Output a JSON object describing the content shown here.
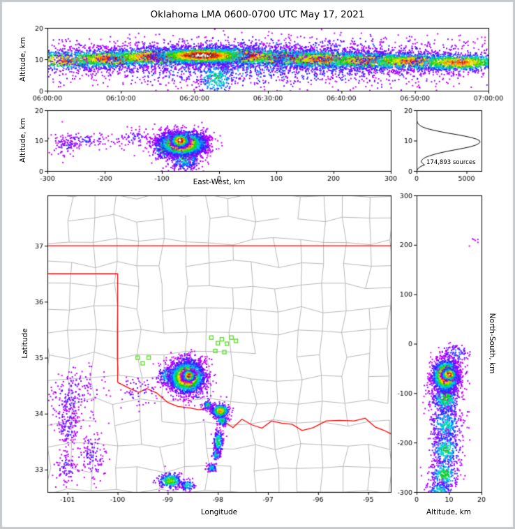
{
  "title": "Oklahoma LMA 0600-0700 UTC May 17, 2021",
  "frame_color": "#c6c9cc",
  "colors": {
    "background": "#ffffff",
    "axis": "#000000",
    "county_line": "#b8b8b8",
    "state_line": "#ff0000",
    "station_marker": "#55dd22",
    "histogram_curve": "#000000",
    "colormap": [
      [
        0.0,
        "#d800ff"
      ],
      [
        0.1,
        "#7a00ff"
      ],
      [
        0.18,
        "#2222ff"
      ],
      [
        0.28,
        "#00a8ff"
      ],
      [
        0.38,
        "#00e0d0"
      ],
      [
        0.48,
        "#00c800"
      ],
      [
        0.58,
        "#90e000"
      ],
      [
        0.66,
        "#ffe800"
      ],
      [
        0.74,
        "#ff9800"
      ],
      [
        0.82,
        "#ff2000"
      ],
      [
        0.89,
        "#a00000"
      ],
      [
        0.94,
        "#606060"
      ],
      [
        1.0,
        "#ffffff"
      ]
    ]
  },
  "chart_data": [
    {
      "id": "time_height",
      "type": "scatter",
      "xlabel": "",
      "ylabel": "Altitude, km",
      "xlim": [
        0,
        60
      ],
      "ylim": [
        0,
        20
      ],
      "xticks": [
        [
          0,
          "06:00:00"
        ],
        [
          10,
          "06:10:00"
        ],
        [
          20,
          "06:20:00"
        ],
        [
          30,
          "06:30:00"
        ],
        [
          40,
          "06:40:00"
        ],
        [
          50,
          "06:50:00"
        ],
        [
          60,
          "07:00:00"
        ]
      ],
      "yticks": [
        [
          0,
          "0"
        ],
        [
          10,
          "10"
        ],
        [
          20,
          "20"
        ]
      ],
      "clusters": [
        [
          30,
          9.5,
          19,
          3.2,
          2200,
          0.3
        ],
        [
          30,
          5.5,
          19,
          2.6,
          550,
          0.2
        ],
        [
          30,
          14.5,
          19,
          1.8,
          380,
          0.18
        ],
        [
          23,
          4.0,
          1.5,
          3.0,
          260,
          0.45
        ],
        [
          3,
          9.8,
          4.0,
          1.7,
          750,
          0.8
        ],
        [
          9,
          10.2,
          4.0,
          1.6,
          900,
          0.85
        ],
        [
          15,
          10.8,
          4.0,
          1.6,
          1000,
          0.9
        ],
        [
          32,
          10.4,
          4.0,
          1.6,
          1000,
          0.9
        ],
        [
          38,
          10.0,
          4.0,
          1.6,
          950,
          0.85
        ],
        [
          44,
          9.6,
          4.0,
          1.5,
          900,
          0.82
        ],
        [
          50,
          9.3,
          4.0,
          1.5,
          850,
          0.8
        ],
        [
          56,
          9.0,
          3.5,
          1.5,
          820,
          0.8
        ],
        [
          26,
          11.0,
          3.5,
          1.5,
          1100,
          0.95
        ],
        [
          21,
          11.2,
          3.5,
          1.4,
          1400,
          1.0
        ]
      ]
    },
    {
      "id": "east_west",
      "type": "scatter",
      "xlabel": "East-West, km",
      "ylabel": "Altitude, km",
      "xlim": [
        -300,
        300
      ],
      "ylim": [
        0,
        20
      ],
      "xticks": [
        [
          -300,
          "-300"
        ],
        [
          -200,
          "-200"
        ],
        [
          -100,
          "-100"
        ],
        [
          0,
          "0"
        ],
        [
          100,
          "100"
        ],
        [
          200,
          "200"
        ],
        [
          300,
          "300"
        ]
      ],
      "yticks": [
        [
          0,
          "0"
        ],
        [
          10,
          "10"
        ],
        [
          20,
          "20"
        ]
      ],
      "clusters": [
        [
          -150,
          11.0,
          22,
          1.8,
          90,
          0.13
        ],
        [
          -240,
          10.0,
          26,
          1.4,
          110,
          0.14
        ],
        [
          -270,
          8.5,
          12,
          2.2,
          60,
          0.13
        ],
        [
          -60,
          4.5,
          14,
          2.2,
          520,
          0.45
        ],
        [
          -95,
          8.0,
          10,
          2.0,
          350,
          0.6
        ],
        [
          -35,
          9.0,
          10,
          2.0,
          300,
          0.5
        ],
        [
          -65,
          9.0,
          20,
          2.0,
          2400,
          1.0
        ],
        [
          -68,
          10.0,
          8,
          1.1,
          700,
          1.0
        ]
      ]
    },
    {
      "id": "alt_histogram",
      "type": "line",
      "xlabel": "",
      "ylabel": "",
      "annotation": "174,893 sources",
      "xlim": [
        0,
        6500
      ],
      "ylim": [
        0,
        20
      ],
      "xticks": [
        [
          0,
          "0"
        ],
        [
          5000,
          "5000"
        ]
      ],
      "yticks": [
        [
          0,
          "0"
        ],
        [
          10,
          "10"
        ],
        [
          20,
          "20"
        ]
      ],
      "profile_alt_count": [
        [
          0,
          30
        ],
        [
          0.5,
          80
        ],
        [
          1,
          200
        ],
        [
          1.5,
          420
        ],
        [
          2,
          800
        ],
        [
          2.5,
          600
        ],
        [
          3,
          450
        ],
        [
          3.5,
          500
        ],
        [
          4,
          650
        ],
        [
          4.5,
          900
        ],
        [
          5,
          1300
        ],
        [
          5.5,
          1800
        ],
        [
          6,
          2400
        ],
        [
          6.5,
          3100
        ],
        [
          7,
          3900
        ],
        [
          7.5,
          4700
        ],
        [
          8,
          5400
        ],
        [
          8.5,
          5900
        ],
        [
          9,
          6200
        ],
        [
          9.5,
          6350
        ],
        [
          10,
          6300
        ],
        [
          10.5,
          6000
        ],
        [
          11,
          5500
        ],
        [
          11.5,
          4800
        ],
        [
          12,
          4000
        ],
        [
          12.5,
          3100
        ],
        [
          13,
          2300
        ],
        [
          13.5,
          1600
        ],
        [
          14,
          1000
        ],
        [
          14.5,
          600
        ],
        [
          15,
          330
        ],
        [
          15.5,
          170
        ],
        [
          16,
          80
        ],
        [
          16.5,
          40
        ],
        [
          17,
          18
        ],
        [
          18,
          6
        ],
        [
          19,
          2
        ],
        [
          20,
          0
        ]
      ]
    },
    {
      "id": "plan_view",
      "type": "scatter-map",
      "xlabel": "Longitude",
      "ylabel": "Latitude",
      "xlim": [
        -101.4,
        -94.55
      ],
      "ylim": [
        32.6,
        37.9
      ],
      "xticks": [
        [
          -101,
          "-101"
        ],
        [
          -100,
          "-100"
        ],
        [
          -99,
          "-99"
        ],
        [
          -98,
          "-98"
        ],
        [
          -97,
          "-97"
        ],
        [
          -96,
          "-96"
        ],
        [
          -95,
          "-95"
        ]
      ],
      "yticks": [
        [
          33,
          "33"
        ],
        [
          34,
          "34"
        ],
        [
          35,
          "35"
        ],
        [
          36,
          "36"
        ],
        [
          37,
          "37"
        ]
      ],
      "county_grid": {
        "lon0": -101.4,
        "lon1": -94.55,
        "lat0": 32.6,
        "lat1": 37.9,
        "nx": 15,
        "ny": 13,
        "jitter": 0.07,
        "skip": 0.12,
        "seed": 7
      },
      "state_border": [
        [
          [
            -101.4,
            37
          ],
          [
            -94.55,
            37
          ]
        ],
        [
          [
            -101.4,
            36.5
          ],
          [
            -100.0,
            36.5
          ],
          [
            -100.0,
            34.56
          ]
        ],
        [
          [
            -100.0,
            34.56
          ],
          [
            -99.78,
            34.46
          ],
          [
            -99.58,
            34.38
          ],
          [
            -99.42,
            34.45
          ],
          [
            -99.22,
            34.37
          ],
          [
            -99.0,
            34.2
          ],
          [
            -98.8,
            34.13
          ],
          [
            -98.55,
            34.1
          ],
          [
            -98.38,
            34.07
          ],
          [
            -98.17,
            34.11
          ],
          [
            -98.08,
            34.06
          ],
          [
            -97.94,
            33.9
          ],
          [
            -97.7,
            33.75
          ],
          [
            -97.52,
            33.9
          ],
          [
            -97.32,
            33.8
          ],
          [
            -97.12,
            33.74
          ],
          [
            -96.93,
            33.87
          ],
          [
            -96.73,
            33.83
          ],
          [
            -96.52,
            33.81
          ],
          [
            -96.32,
            33.7
          ],
          [
            -96.1,
            33.75
          ],
          [
            -95.84,
            33.87
          ],
          [
            -95.58,
            33.88
          ],
          [
            -95.28,
            33.87
          ],
          [
            -95.06,
            33.92
          ],
          [
            -94.86,
            33.76
          ],
          [
            -94.68,
            33.7
          ],
          [
            -94.55,
            33.64
          ]
        ]
      ],
      "stations": [
        [
          -99.6,
          35.0
        ],
        [
          -99.5,
          34.9
        ],
        [
          -99.38,
          35.0
        ],
        [
          -98.13,
          35.36
        ],
        [
          -98.0,
          35.26
        ],
        [
          -97.92,
          35.33
        ],
        [
          -97.82,
          35.25
        ],
        [
          -97.73,
          35.36
        ],
        [
          -98.05,
          35.12
        ],
        [
          -97.87,
          35.1
        ],
        [
          -97.64,
          35.3
        ]
      ],
      "clusters": [
        [
          -100.95,
          34.2,
          0.18,
          0.25,
          160,
          0.13
        ],
        [
          -101.0,
          33.75,
          0.12,
          0.2,
          120,
          0.13
        ],
        [
          -100.5,
          33.25,
          0.15,
          0.2,
          130,
          0.14
        ],
        [
          -101.05,
          33.05,
          0.12,
          0.15,
          90,
          0.13
        ],
        [
          -100.8,
          34.5,
          0.3,
          0.15,
          70,
          0.12
        ],
        [
          -99.6,
          34.4,
          0.25,
          0.15,
          60,
          0.13
        ],
        [
          -98.4,
          34.4,
          0.2,
          0.15,
          80,
          0.2
        ],
        [
          -98.6,
          34.95,
          0.2,
          0.07,
          120,
          0.2
        ],
        [
          -98.2,
          34.15,
          0.05,
          0.04,
          100,
          0.45
        ],
        [
          -98.12,
          33.03,
          0.05,
          0.04,
          70,
          0.4
        ],
        [
          -98.03,
          33.27,
          0.04,
          0.05,
          90,
          0.45
        ],
        [
          -97.99,
          33.5,
          0.05,
          0.1,
          160,
          0.5
        ],
        [
          -97.92,
          33.88,
          0.06,
          0.05,
          120,
          0.5
        ],
        [
          -98.6,
          32.72,
          0.08,
          0.05,
          90,
          0.4
        ],
        [
          -98.95,
          32.8,
          0.12,
          0.07,
          260,
          0.6
        ],
        [
          -98.95,
          34.68,
          0.14,
          0.1,
          250,
          0.4
        ],
        [
          -97.95,
          34.05,
          0.09,
          0.06,
          420,
          0.75
        ],
        [
          -98.62,
          34.65,
          0.17,
          0.14,
          2200,
          1.0
        ],
        [
          -98.58,
          34.68,
          0.06,
          0.05,
          600,
          1.0
        ]
      ]
    },
    {
      "id": "north_south",
      "type": "scatter",
      "xlabel": "Altitude, km",
      "ylabel_right": "North-South, km",
      "xlim": [
        0,
        20
      ],
      "ylim": [
        -300,
        300
      ],
      "xticks": [
        [
          0,
          "0"
        ],
        [
          10,
          "10"
        ],
        [
          20,
          "20"
        ]
      ],
      "yticks": [
        [
          300,
          "300"
        ],
        [
          200,
          "200"
        ],
        [
          100,
          "100"
        ],
        [
          0,
          "0"
        ],
        [
          -100,
          "-100"
        ],
        [
          -200,
          "-200"
        ],
        [
          -300,
          "-300"
        ]
      ],
      "clusters": [
        [
          18,
          205,
          1.0,
          5,
          6,
          0.12
        ],
        [
          12,
          -20,
          2.0,
          10,
          100,
          0.25
        ],
        [
          9,
          -110,
          2.2,
          18,
          500,
          0.5
        ],
        [
          9,
          -165,
          2.4,
          20,
          350,
          0.4
        ],
        [
          9,
          -215,
          2.4,
          18,
          300,
          0.45
        ],
        [
          8.5,
          -265,
          2.2,
          16,
          280,
          0.5
        ],
        [
          7,
          -295,
          2.0,
          8,
          120,
          0.4
        ],
        [
          9,
          -65,
          2.0,
          16,
          2000,
          1.0
        ],
        [
          10,
          -62,
          1.1,
          6,
          550,
          1.0
        ]
      ]
    }
  ]
}
